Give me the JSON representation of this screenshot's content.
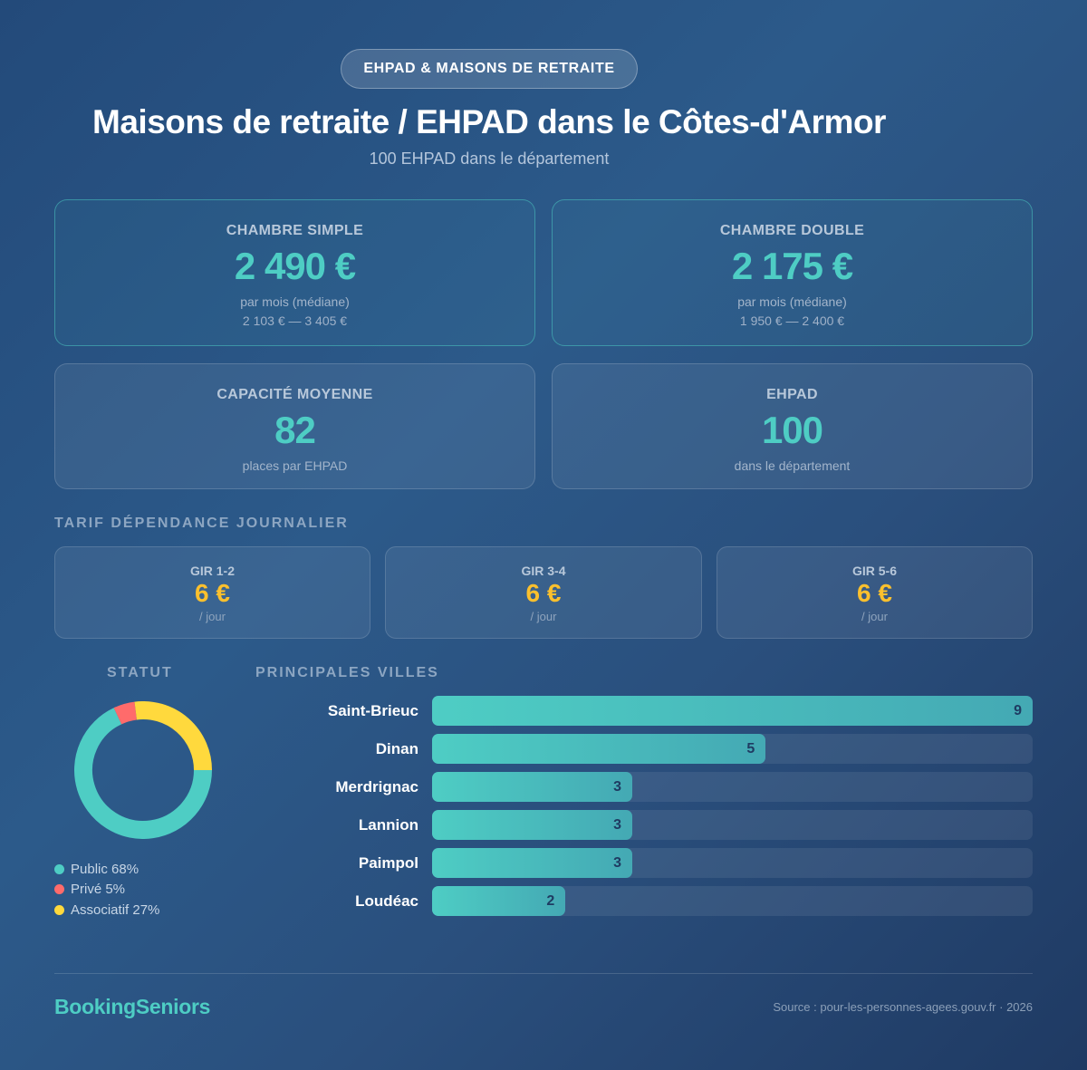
{
  "header": {
    "badge": "EHPAD & MAISONS DE RETRAITE",
    "title": "Maisons de retraite / EHPAD dans le Côtes-d'Armor",
    "subtitle": "100 EHPAD dans le département"
  },
  "price_cards": [
    {
      "label": "CHAMBRE SIMPLE",
      "value": "2 490 €",
      "sub": "par mois (médiane)",
      "range": "2 103 € — 3 405 €"
    },
    {
      "label": "CHAMBRE DOUBLE",
      "value": "2 175 €",
      "sub": "par mois (médiane)",
      "range": "1 950 € — 2 400 €"
    }
  ],
  "stat_cards": [
    {
      "label": "CAPACITÉ MOYENNE",
      "value": "82",
      "sub": "places par EHPAD"
    },
    {
      "label": "EHPAD",
      "value": "100",
      "sub": "dans le département"
    }
  ],
  "dependance": {
    "title": "TARIF DÉPENDANCE JOURNALIER",
    "items": [
      {
        "label": "GIR 1-2",
        "value": "6 €",
        "unit": "/ jour"
      },
      {
        "label": "GIR 3-4",
        "value": "6 €",
        "unit": "/ jour"
      },
      {
        "label": "GIR 5-6",
        "value": "6 €",
        "unit": "/ jour"
      }
    ]
  },
  "statut": {
    "title": "STATUT",
    "items": [
      {
        "label": "Public 68%",
        "name": "Public",
        "pct": 68,
        "color": "#4ecdc4"
      },
      {
        "label": "Privé 5%",
        "name": "Privé",
        "pct": 5,
        "color": "#ff6b6b"
      },
      {
        "label": "Associatif 27%",
        "name": "Associatif",
        "pct": 27,
        "color": "#ffd93d"
      }
    ]
  },
  "villes": {
    "title": "PRINCIPALES VILLES",
    "max": 9,
    "items": [
      {
        "name": "Saint-Brieuc",
        "value": "9"
      },
      {
        "name": "Dinan",
        "value": "5"
      },
      {
        "name": "Merdrignac",
        "value": "3"
      },
      {
        "name": "Lannion",
        "value": "3"
      },
      {
        "name": "Paimpol",
        "value": "3"
      },
      {
        "name": "Loudéac",
        "value": "2"
      }
    ]
  },
  "footer": {
    "brand": "BookingSeniors",
    "source": "Source : pour-les-personnes-agees.gouv.fr · 2026"
  },
  "colors": {
    "accent": "#4ecdc4",
    "gold": "#fbc02d",
    "public": "#4ecdc4",
    "prive": "#ff6b6b",
    "associatif": "#ffd93d"
  },
  "chart_data": [
    {
      "type": "pie",
      "title": "STATUT",
      "categories": [
        "Public",
        "Privé",
        "Associatif"
      ],
      "values": [
        68,
        5,
        27
      ],
      "colors": [
        "#4ecdc4",
        "#ff6b6b",
        "#ffd93d"
      ],
      "legend_position": "bottom"
    },
    {
      "type": "bar",
      "orientation": "horizontal",
      "title": "PRINCIPALES VILLES",
      "categories": [
        "Saint-Brieuc",
        "Dinan",
        "Merdrignac",
        "Lannion",
        "Paimpol",
        "Loudéac"
      ],
      "values": [
        9,
        5,
        3,
        3,
        3,
        2
      ],
      "grid": false
    }
  ]
}
